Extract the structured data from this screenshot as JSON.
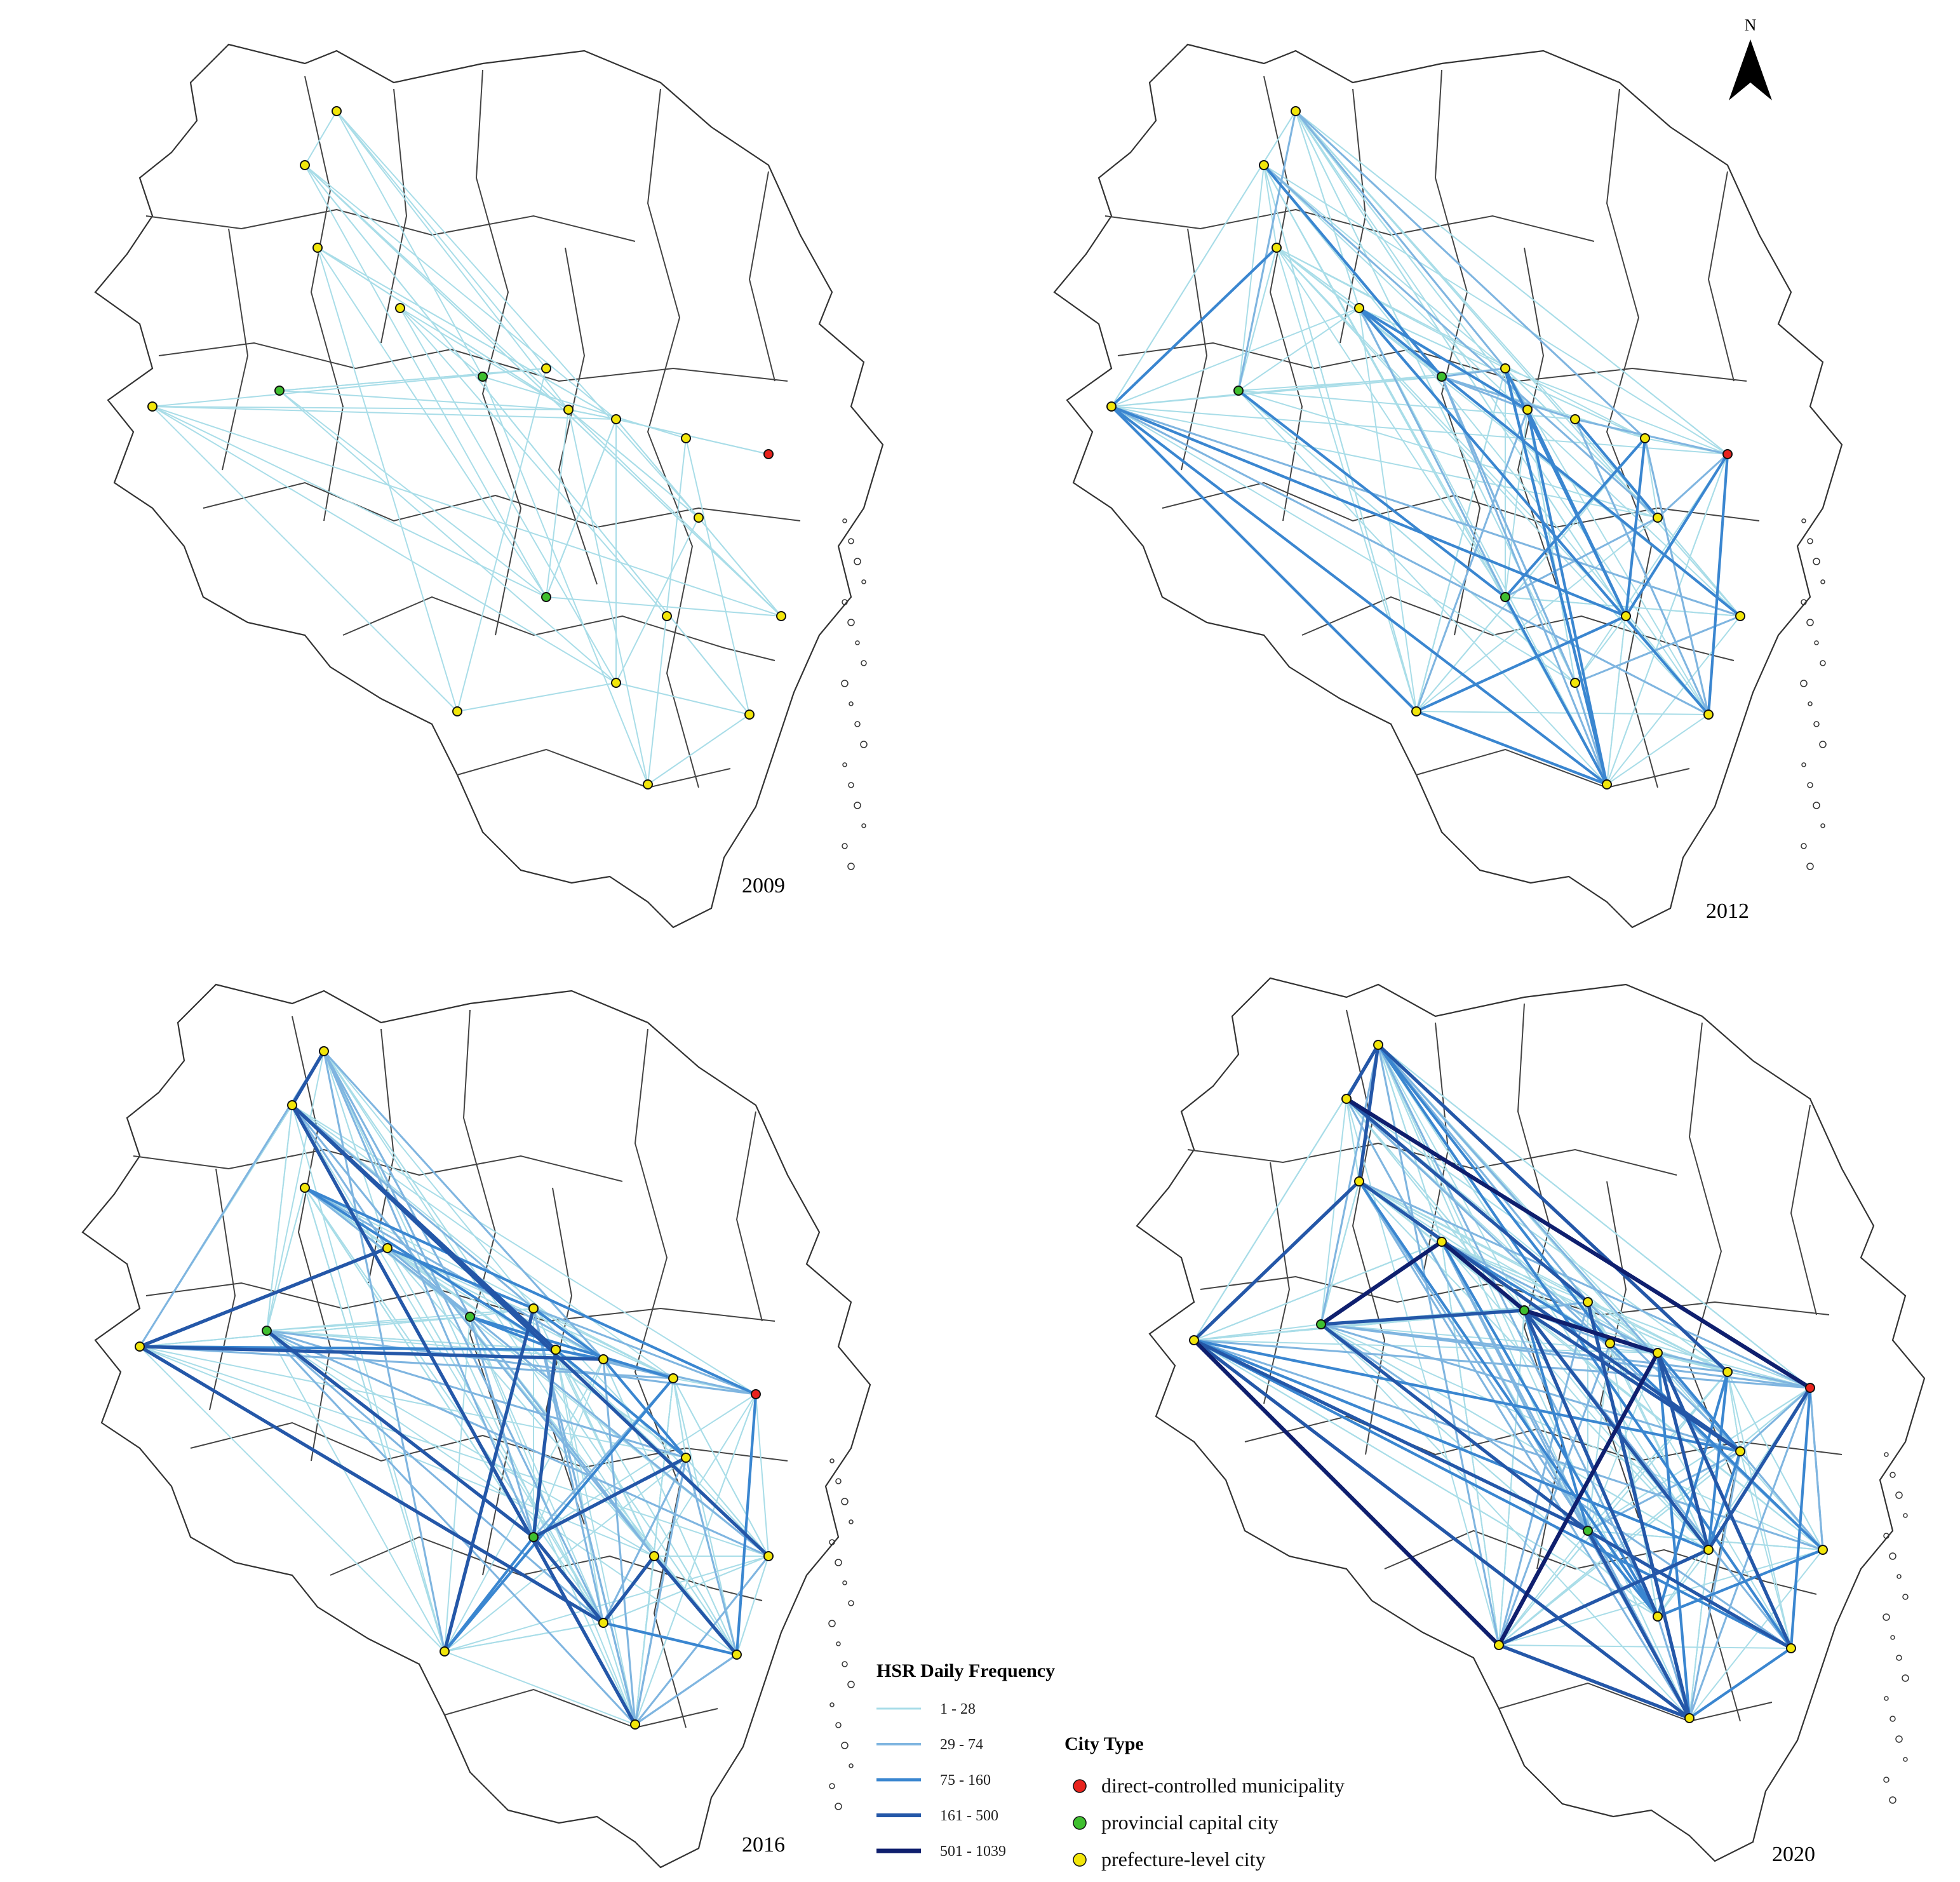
{
  "panels": [
    {
      "year": "2009"
    },
    {
      "year": "2012"
    },
    {
      "year": "2016"
    },
    {
      "year": "2020"
    }
  ],
  "north_arrow": {
    "letter": "N"
  },
  "legend": {
    "frequency": {
      "title": "HSR Daily Frequency",
      "classes": [
        {
          "label": "1 - 28",
          "color": "#a9dde8"
        },
        {
          "label": "29 - 74",
          "color": "#7fb5e0"
        },
        {
          "label": "75 - 160",
          "color": "#3a86d0"
        },
        {
          "label": "161 - 500",
          "color": "#2457a8"
        },
        {
          "label": "501 - 1039",
          "color": "#0f1f6e"
        }
      ]
    },
    "city_type": {
      "title": "City Type",
      "items": [
        {
          "label": "direct-controlled municipality",
          "color": "#e8231d"
        },
        {
          "label": "provincial capital city",
          "color": "#3fbf2f"
        },
        {
          "label": "prefecture-level city",
          "color": "#f2e60a"
        }
      ]
    }
  },
  "colors": {
    "boundary": "#333333",
    "background": "#ffffff"
  }
}
